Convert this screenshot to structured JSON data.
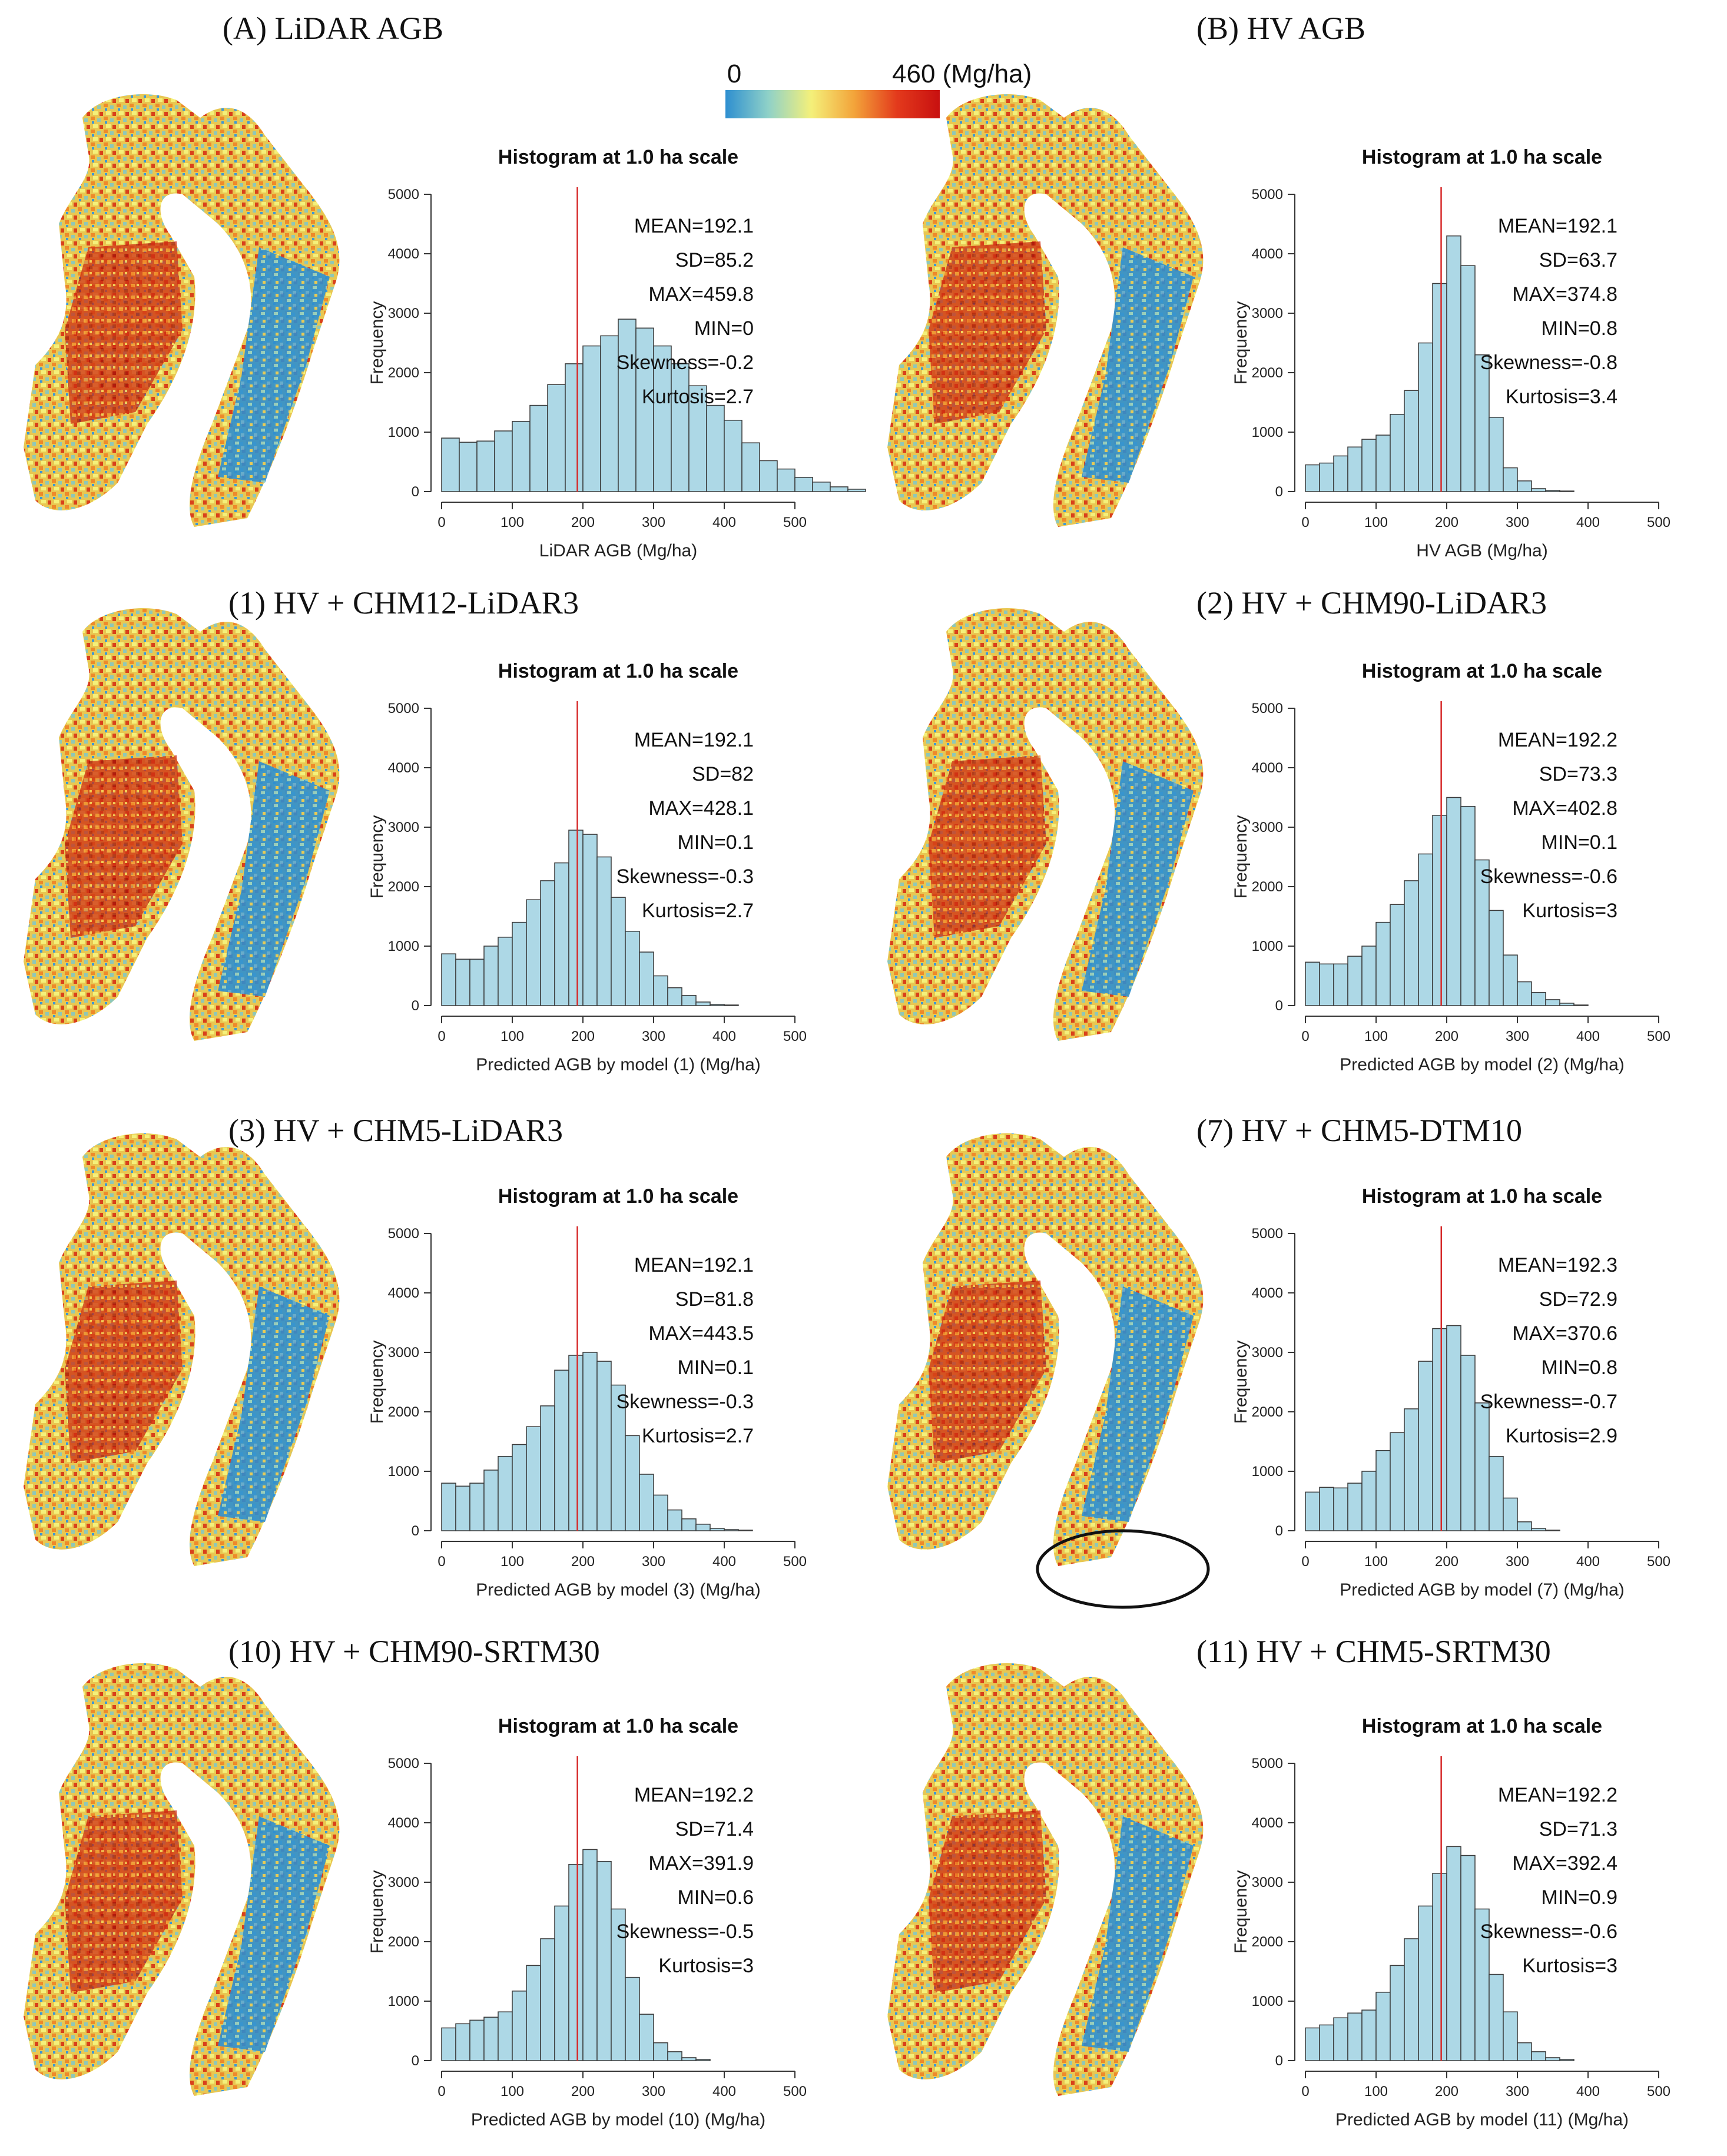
{
  "colorbar": {
    "min_label": "0",
    "max_label": "460 (Mg/ha)",
    "colors": [
      "#2e8fd0",
      "#8fd1c8",
      "#f4f07a",
      "#f3a43a",
      "#e33a1c",
      "#c81010"
    ]
  },
  "colors": {
    "bar_fill": "#add8e6",
    "bar_stroke": "#3a3a3a",
    "mean_line": "#d62a2a"
  },
  "panels": [
    {
      "title": "(A) LiDAR AGB",
      "chart_data": {
        "type": "bar",
        "title": "Histogram at 1.0 ha scale",
        "xlabel": "LiDAR AGB (Mg/ha)",
        "ylabel": "Frequency",
        "xlim": [
          0,
          500
        ],
        "ylim": [
          0,
          5000
        ],
        "bin_width": 25,
        "values": [
          900,
          830,
          850,
          1020,
          1180,
          1450,
          1800,
          2150,
          2450,
          2620,
          2900,
          2750,
          2450,
          2150,
          1780,
          1450,
          1200,
          820,
          520,
          380,
          240,
          160,
          80,
          40
        ],
        "mean_line": 192.1,
        "stats": [
          "MEAN=192.1",
          "SD=85.2",
          "MAX=459.8",
          "MIN=0",
          "Skewness=-0.2",
          "Kurtosis=2.7"
        ]
      }
    },
    {
      "title": "(B) HV AGB",
      "chart_data": {
        "type": "bar",
        "title": "Histogram at 1.0 ha scale",
        "xlabel": "HV AGB (Mg/ha)",
        "ylabel": "Frequency",
        "xlim": [
          0,
          500
        ],
        "ylim": [
          0,
          5000
        ],
        "bin_width": 20,
        "values": [
          450,
          480,
          600,
          750,
          880,
          950,
          1300,
          1700,
          2500,
          3500,
          4300,
          3800,
          2300,
          1250,
          400,
          180,
          50,
          20,
          10
        ],
        "mean_line": 192.1,
        "stats": [
          "MEAN=192.1",
          "SD=63.7",
          "MAX=374.8",
          "MIN=0.8",
          "Skewness=-0.8",
          "Kurtosis=3.4"
        ]
      }
    },
    {
      "title": "(1) HV + CHM12-LiDAR3",
      "chart_data": {
        "type": "bar",
        "title": "Histogram at 1.0 ha scale",
        "xlabel": "Predicted AGB by model (1) (Mg/ha)",
        "ylabel": "Frequency",
        "xlim": [
          0,
          500
        ],
        "ylim": [
          0,
          5000
        ],
        "bin_width": 20,
        "values": [
          870,
          780,
          780,
          1000,
          1150,
          1400,
          1780,
          2100,
          2400,
          2950,
          2880,
          2500,
          1820,
          1250,
          900,
          500,
          300,
          170,
          60,
          20,
          10
        ],
        "mean_line": 192.1,
        "stats": [
          "MEAN=192.1",
          "SD=82",
          "MAX=428.1",
          "MIN=0.1",
          "Skewness=-0.3",
          "Kurtosis=2.7"
        ]
      }
    },
    {
      "title": "(2) HV + CHM90-LiDAR3",
      "chart_data": {
        "type": "bar",
        "title": "Histogram at 1.0 ha scale",
        "xlabel": "Predicted AGB by model (2) (Mg/ha)",
        "ylabel": "Frequency",
        "xlim": [
          0,
          500
        ],
        "ylim": [
          0,
          5000
        ],
        "bin_width": 20,
        "values": [
          730,
          700,
          700,
          830,
          1000,
          1400,
          1700,
          2100,
          2550,
          3200,
          3500,
          3350,
          2450,
          1600,
          850,
          400,
          220,
          100,
          40,
          10
        ],
        "mean_line": 192.2,
        "stats": [
          "MEAN=192.2",
          "SD=73.3",
          "MAX=402.8",
          "MIN=0.1",
          "Skewness=-0.6",
          "Kurtosis=3"
        ]
      }
    },
    {
      "title": "(3) HV + CHM5-LiDAR3",
      "chart_data": {
        "type": "bar",
        "title": "Histogram at 1.0 ha scale",
        "xlabel": "Predicted AGB by model (3) (Mg/ha)",
        "ylabel": "Frequency",
        "xlim": [
          0,
          500
        ],
        "ylim": [
          0,
          5000
        ],
        "bin_width": 20,
        "values": [
          800,
          750,
          800,
          1020,
          1250,
          1450,
          1750,
          2100,
          2700,
          2950,
          3000,
          2850,
          2450,
          1600,
          950,
          600,
          350,
          200,
          110,
          40,
          20,
          10
        ],
        "mean_line": 192.1,
        "stats": [
          "MEAN=192.1",
          "SD=81.8",
          "MAX=443.5",
          "MIN=0.1",
          "Skewness=-0.3",
          "Kurtosis=2.7"
        ]
      }
    },
    {
      "title": "(7) HV + CHM5-DTM10",
      "chart_data": {
        "type": "bar",
        "title": "Histogram at 1.0 ha scale",
        "xlabel": "Predicted AGB by model (7) (Mg/ha)",
        "ylabel": "Frequency",
        "xlim": [
          0,
          500
        ],
        "ylim": [
          0,
          5000
        ],
        "bin_width": 20,
        "values": [
          650,
          730,
          720,
          800,
          1000,
          1350,
          1650,
          2050,
          2850,
          3400,
          3450,
          2950,
          2150,
          1250,
          550,
          150,
          40,
          10
        ],
        "mean_line": 192.3,
        "stats": [
          "MEAN=192.3",
          "SD=72.9",
          "MAX=370.6",
          "MIN=0.8",
          "Skewness=-0.7",
          "Kurtosis=2.9"
        ]
      }
    },
    {
      "title": "(10) HV + CHM90-SRTM30",
      "chart_data": {
        "type": "bar",
        "title": "Histogram at 1.0 ha scale",
        "xlabel": "Predicted AGB by model (10) (Mg/ha)",
        "ylabel": "Frequency",
        "xlim": [
          0,
          500
        ],
        "ylim": [
          0,
          5000
        ],
        "bin_width": 20,
        "values": [
          550,
          620,
          680,
          730,
          820,
          1170,
          1600,
          2050,
          2600,
          3300,
          3550,
          3350,
          2550,
          1400,
          780,
          300,
          150,
          50,
          20
        ],
        "mean_line": 192.2,
        "stats": [
          "MEAN=192.2",
          "SD=71.4",
          "MAX=391.9",
          "MIN=0.6",
          "Skewness=-0.5",
          "Kurtosis=3"
        ]
      }
    },
    {
      "title": "(11) HV + CHM5-SRTM30",
      "chart_data": {
        "type": "bar",
        "title": "Histogram at 1.0 ha scale",
        "xlabel": "Predicted AGB by model (11) (Mg/ha)",
        "ylabel": "Frequency",
        "xlim": [
          0,
          500
        ],
        "ylim": [
          0,
          5000
        ],
        "bin_width": 20,
        "values": [
          550,
          600,
          720,
          800,
          850,
          1150,
          1600,
          2050,
          2600,
          3150,
          3600,
          3450,
          2550,
          1450,
          820,
          300,
          150,
          50,
          20
        ],
        "mean_line": 192.2,
        "stats": [
          "MEAN=192.2",
          "SD=71.3",
          "MAX=392.4",
          "MIN=0.9",
          "Skewness=-0.6",
          "Kurtosis=3"
        ]
      }
    }
  ]
}
